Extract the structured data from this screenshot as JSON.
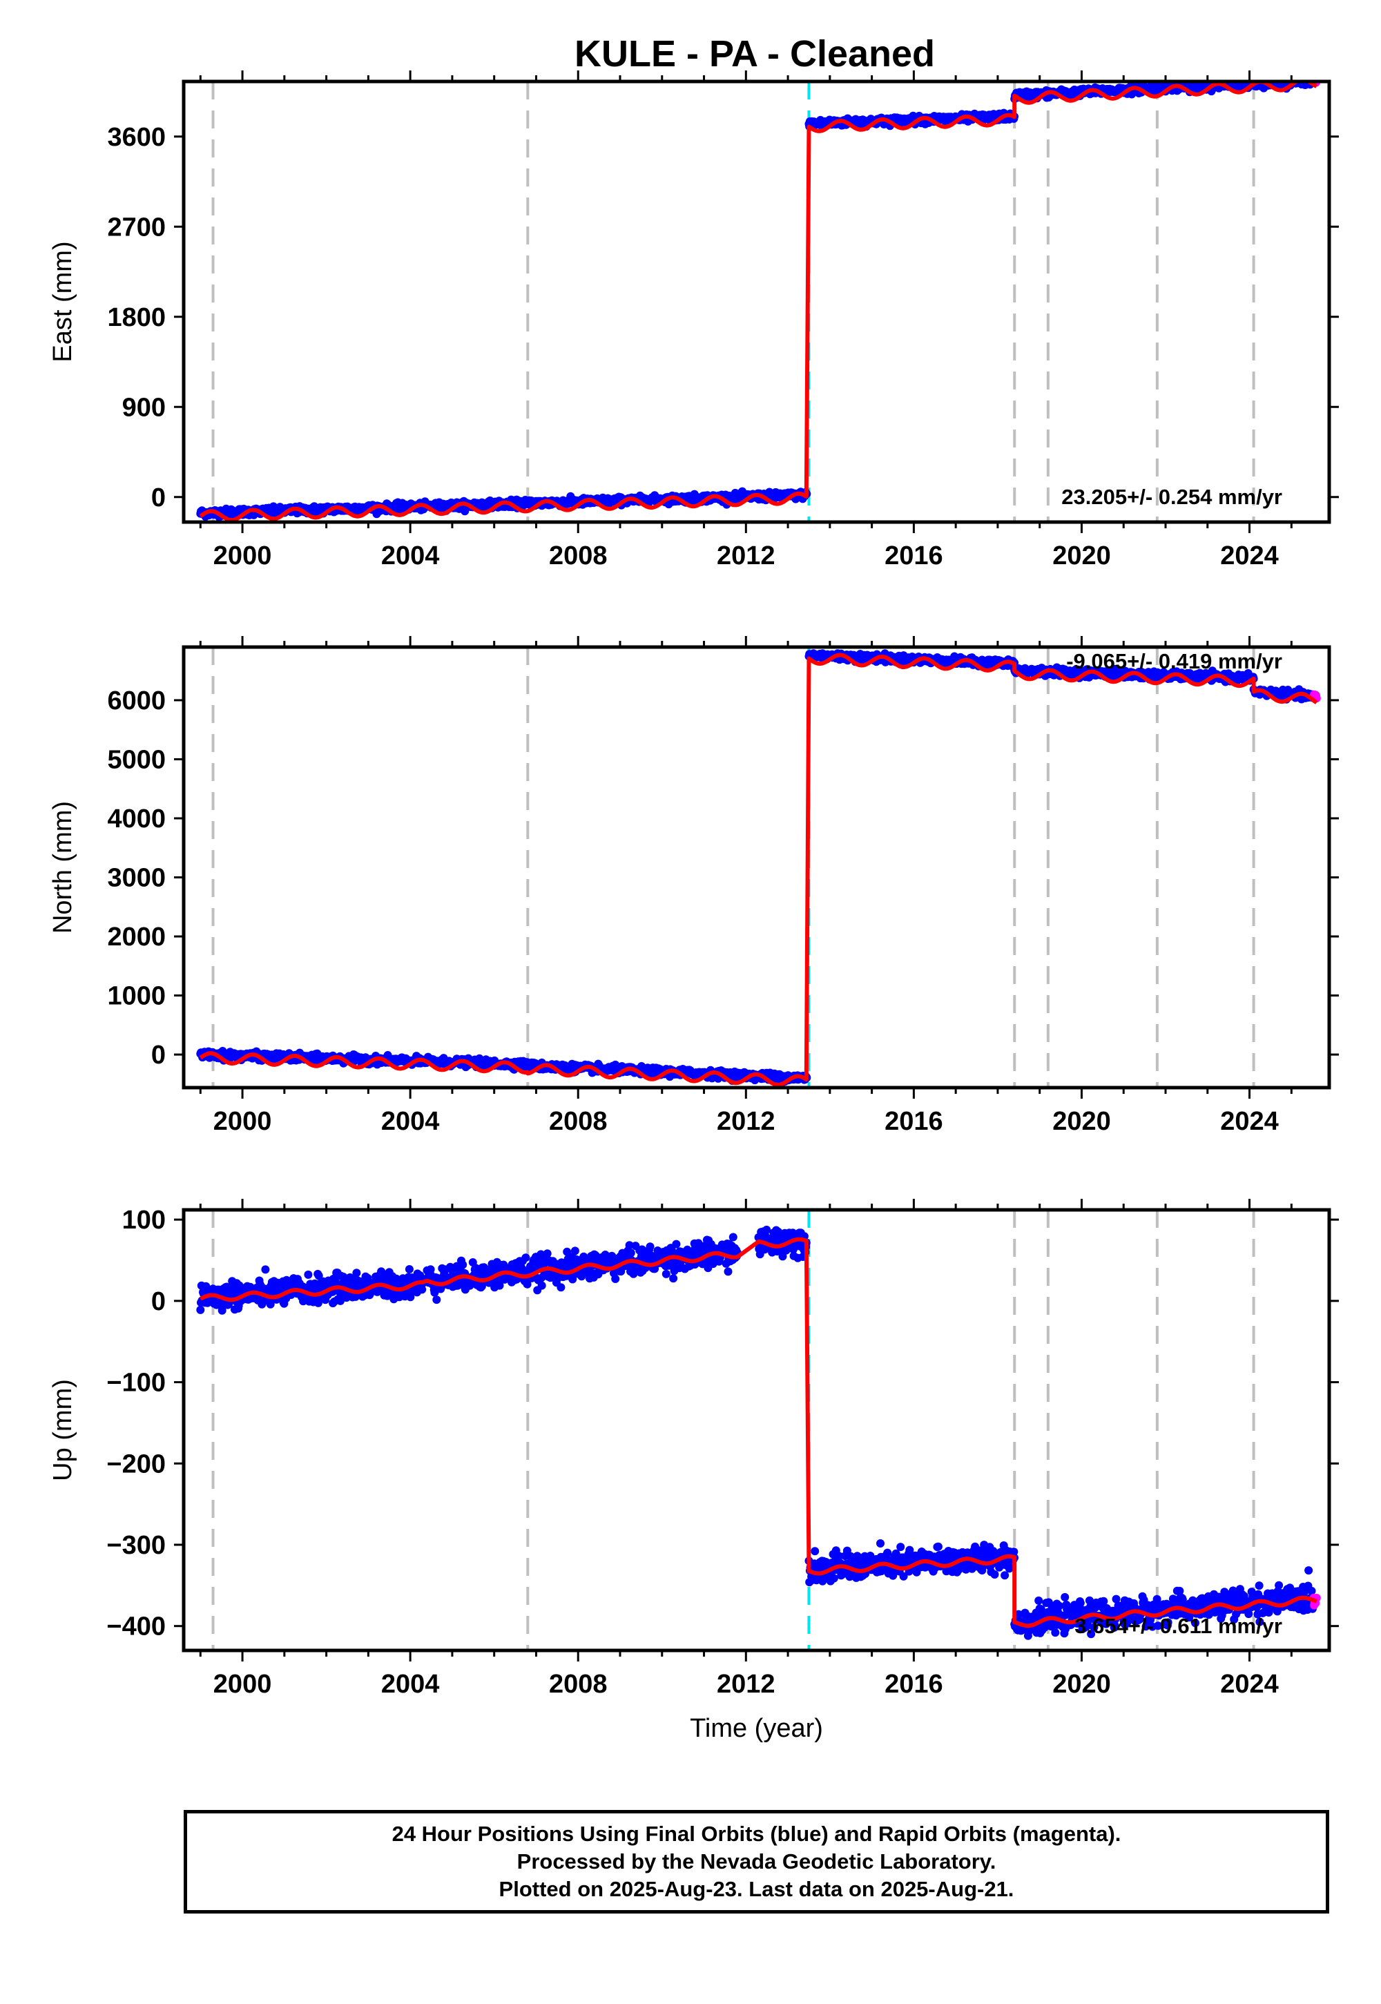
{
  "title": "KULE  - PA - Cleaned",
  "colors": {
    "final_orbits": "#0000ff",
    "rapid_orbits": "#ff00ff",
    "model": "#ff0000",
    "equipment_change": "#bfbfbf",
    "earthquake": "#00e5ee"
  },
  "footer": {
    "line1": "24 Hour Positions Using Final Orbits (blue) and Rapid Orbits (magenta).",
    "line2": "Processed by the Nevada Geodetic Laboratory.",
    "line3": "Plotted on 2025-Aug-23. Last data on 2025-Aug-21."
  },
  "chart_data": [
    {
      "type": "scatter",
      "title": "KULE  - PA - Cleaned",
      "xlabel": "",
      "ylabel": "East (mm)",
      "xlim": [
        1998.6,
        2025.9
      ],
      "ylim": [
        -250,
        4150
      ],
      "xticks": [
        2000,
        2004,
        2008,
        2012,
        2016,
        2020,
        2024
      ],
      "yticks": [
        0,
        900,
        1800,
        2700,
        3600
      ],
      "rate_label": "23.205+/- 0.254 mm/yr",
      "rate_position": "bottom-right",
      "grid": false,
      "equipment_changes": [
        1999.3,
        2006.8,
        2018.4,
        2019.2,
        2021.8,
        2024.1
      ],
      "earthquakes": [
        2013.5
      ],
      "series": [
        {
          "name": "",
          "segments": [
            {
              "x": [
                1999.0,
                2013.45
              ],
              "y": [
                -160,
                20
              ]
            },
            {
              "x": [
                2013.5,
                2018.4
              ],
              "y": [
                3730,
                3800
              ]
            },
            {
              "x": [
                2018.4,
                2025.6
              ],
              "y": [
                4010,
                4160
              ]
            }
          ],
          "rapid_end": 2025.6
        }
      ]
    },
    {
      "type": "scatter",
      "xlabel": "",
      "ylabel": "North (mm)",
      "xlim": [
        1998.6,
        2025.9
      ],
      "ylim": [
        -560,
        6900
      ],
      "xticks": [
        2000,
        2004,
        2008,
        2012,
        2016,
        2020,
        2024
      ],
      "yticks": [
        0,
        1000,
        2000,
        3000,
        4000,
        5000,
        6000
      ],
      "rate_label": "-9.065+/- 0.419 mm/yr",
      "rate_position": "top-right",
      "grid": false,
      "equipment_changes": [
        1999.3,
        2006.8,
        2018.4,
        2019.2,
        2021.8,
        2024.1
      ],
      "earthquakes": [
        2013.5
      ],
      "series": [
        {
          "name": "",
          "segments": [
            {
              "x": [
                1999.0,
                2006.8
              ],
              "y": [
                0,
                -170
              ]
            },
            {
              "x": [
                2006.8,
                2013.45
              ],
              "y": [
                -190,
                -400
              ]
            },
            {
              "x": [
                2013.5,
                2018.4
              ],
              "y": [
                6760,
                6620
              ]
            },
            {
              "x": [
                2018.4,
                2024.1
              ],
              "y": [
                6500,
                6370
              ]
            },
            {
              "x": [
                2024.1,
                2025.6
              ],
              "y": [
                6150,
                6060
              ]
            }
          ],
          "rapid_end": 2025.6
        }
      ]
    },
    {
      "type": "scatter",
      "xlabel": "Time (year)",
      "ylabel": "Up (mm)",
      "xlim": [
        1998.6,
        2025.9
      ],
      "ylim": [
        -430,
        112
      ],
      "xticks": [
        2000,
        2004,
        2008,
        2012,
        2016,
        2020,
        2024
      ],
      "yticks": [
        100,
        0,
        -100,
        -200,
        -300,
        -400
      ],
      "ytick_labels": [
        "100",
        "0",
        "−100",
        "−200",
        "−300",
        "−400"
      ],
      "rate_label": "3.654+/- 0.611 mm/yr",
      "rate_position": "bottom-right",
      "grid": false,
      "equipment_changes": [
        1999.3,
        2006.8,
        2018.4,
        2019.2,
        2021.8,
        2024.1
      ],
      "earthquakes": [
        2013.5
      ],
      "series": [
        {
          "name": "",
          "segments": [
            {
              "x": [
                1999.0,
                2004.3
              ],
              "y": [
                5,
                22
              ]
            },
            {
              "x": [
                2004.4,
                2011.8
              ],
              "y": [
                25,
                60
              ]
            },
            {
              "x": [
                2012.3,
                2013.45
              ],
              "y": [
                72,
                75
              ]
            },
            {
              "x": [
                2013.5,
                2018.4
              ],
              "y": [
                -330,
                -315
              ]
            },
            {
              "x": [
                2018.4,
                2025.6
              ],
              "y": [
                -395,
                -365
              ]
            }
          ],
          "rapid_end": 2025.6
        }
      ]
    }
  ]
}
